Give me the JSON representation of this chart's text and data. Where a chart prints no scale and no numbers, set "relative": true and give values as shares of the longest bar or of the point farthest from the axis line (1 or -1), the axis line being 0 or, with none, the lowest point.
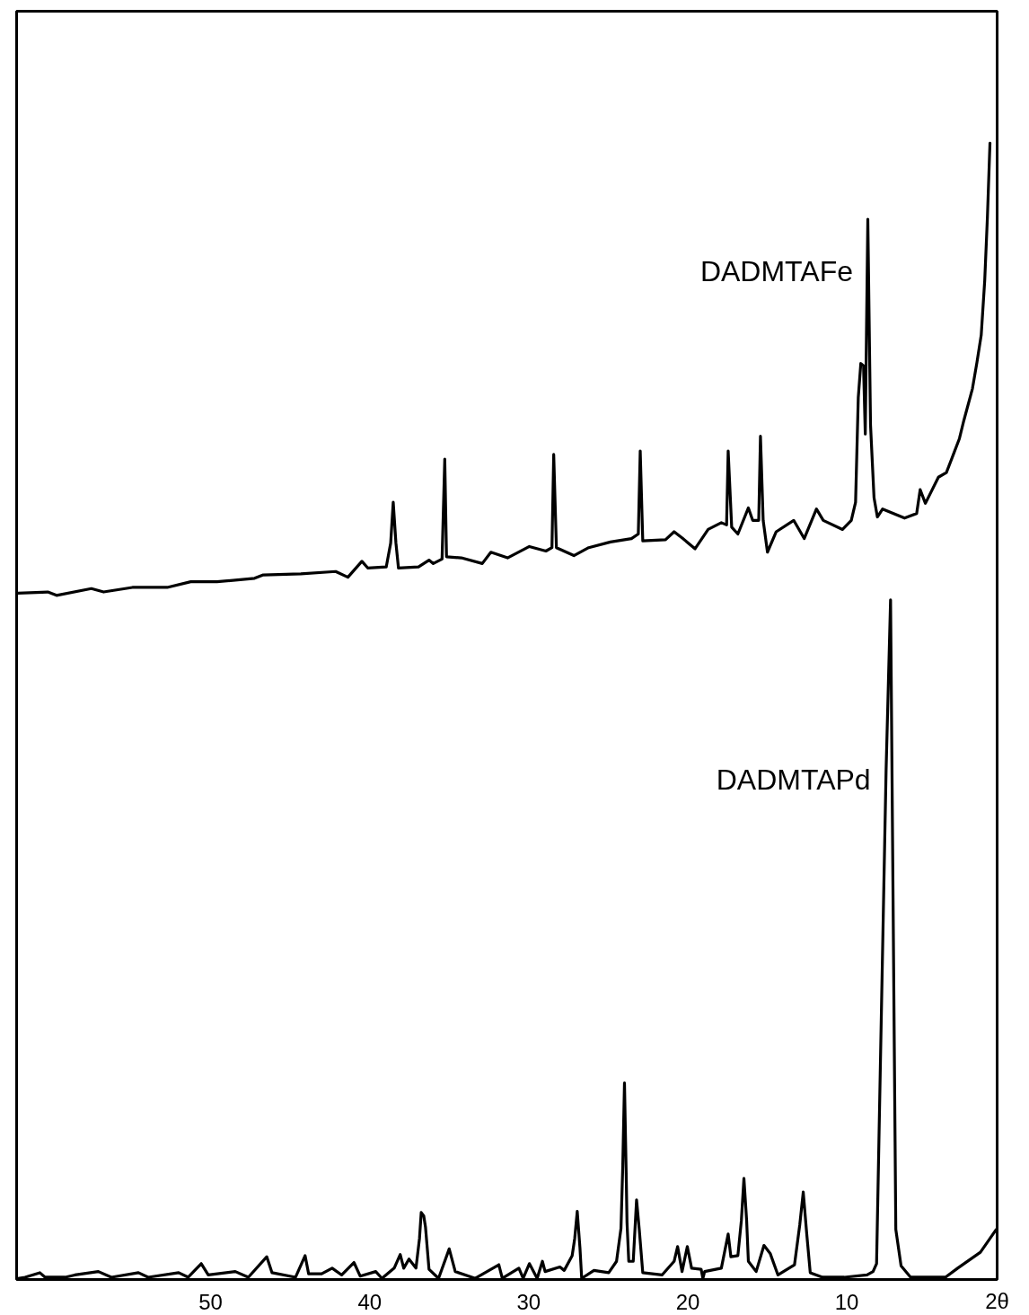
{
  "chart_data": {
    "type": "line",
    "relative": true,
    "xlabel": "2θ",
    "xlim": [
      62.2,
      0.55
    ],
    "xticks": [
      50,
      40,
      30,
      20,
      10
    ],
    "series": [
      {
        "name": "DADMTAFe",
        "color": "#000000",
        "x": [
          62.11,
          60.24,
          59.69,
          57.5,
          56.73,
          54.92,
          52.73,
          51.25,
          49.6,
          47.24,
          46.69,
          44.33,
          42.14,
          41.37,
          40.49,
          40.11,
          38.96,
          38.68,
          38.52,
          38.35,
          38.19,
          36.93,
          36.27,
          36.0,
          35.45,
          35.28,
          35.17,
          34.24,
          32.92,
          32.38,
          31.33,
          29.96,
          28.92,
          28.54,
          28.43,
          28.26,
          27.16,
          26.23,
          24.86,
          23.54,
          23.11,
          22.99,
          22.83,
          21.4,
          20.86,
          20.31,
          19.54,
          18.72,
          17.89,
          17.56,
          17.46,
          17.24,
          16.85,
          16.19,
          15.92,
          15.54,
          15.43,
          15.26,
          14.99,
          14.44,
          13.34,
          12.68,
          11.91,
          11.48,
          10.27,
          9.72,
          9.45,
          9.28,
          9.12,
          8.95,
          8.84,
          8.68,
          8.51,
          8.29,
          8.08,
          7.75,
          6.37,
          5.61,
          5.39,
          5.06,
          4.24,
          3.74,
          3.3,
          2.92,
          2.64,
          2.1,
          1.82,
          1.55,
          1.33,
          1.16,
          1.0
        ],
        "values": [
          0.604,
          0.605,
          0.602,
          0.608,
          0.605,
          0.609,
          0.609,
          0.614,
          0.614,
          0.617,
          0.62,
          0.621,
          0.623,
          0.618,
          0.632,
          0.626,
          0.627,
          0.648,
          0.684,
          0.648,
          0.626,
          0.627,
          0.633,
          0.63,
          0.634,
          0.722,
          0.636,
          0.635,
          0.63,
          0.64,
          0.635,
          0.645,
          0.641,
          0.644,
          0.726,
          0.644,
          0.637,
          0.644,
          0.649,
          0.652,
          0.656,
          0.729,
          0.65,
          0.651,
          0.658,
          0.652,
          0.643,
          0.66,
          0.666,
          0.664,
          0.729,
          0.662,
          0.656,
          0.679,
          0.668,
          0.668,
          0.742,
          0.668,
          0.64,
          0.658,
          0.668,
          0.652,
          0.678,
          0.668,
          0.66,
          0.668,
          0.684,
          0.776,
          0.806,
          0.804,
          0.744,
          0.933,
          0.752,
          0.688,
          0.671,
          0.678,
          0.67,
          0.674,
          0.695,
          0.683,
          0.706,
          0.71,
          0.726,
          0.74,
          0.756,
          0.784,
          0.807,
          0.831,
          0.879,
          0.935,
          1.0
        ]
      },
      {
        "name": "DADMTAPd",
        "color": "#000000",
        "x": [
          62.11,
          61.67,
          60.74,
          60.41,
          59.15,
          58.54,
          57.06,
          56.24,
          54.54,
          53.93,
          52.01,
          51.41,
          50.59,
          50.15,
          48.45,
          47.63,
          46.47,
          46.14,
          44.66,
          44.06,
          43.84,
          43.02,
          42.36,
          41.76,
          40.99,
          40.6,
          39.62,
          39.23,
          38.46,
          38.08,
          37.86,
          37.53,
          37.09,
          36.87,
          36.76,
          36.6,
          36.49,
          36.27,
          35.67,
          35.0,
          34.62,
          33.36,
          31.88,
          31.66,
          30.62,
          30.35,
          29.96,
          29.47,
          29.14,
          28.97,
          28.04,
          27.77,
          27.27,
          27.11,
          26.95,
          26.78,
          26.67,
          25.9,
          24.97,
          24.48,
          24.2,
          24.09,
          23.98,
          23.87,
          23.82,
          23.71,
          23.43,
          23.22,
          23.05,
          22.83,
          21.62,
          20.86,
          20.64,
          20.36,
          20.03,
          19.76,
          19.16,
          19.05,
          18.94,
          17.89,
          17.46,
          17.29,
          16.85,
          16.63,
          16.47,
          16.3,
          16.19,
          15.7,
          15.21,
          14.82,
          14.33,
          13.29,
          12.96,
          12.74,
          12.52,
          12.3,
          11.53,
          10.16,
          8.73,
          8.35,
          8.13,
          7.86,
          7.53,
          7.25,
          7.09,
          6.92,
          6.59,
          5.99,
          3.8,
          3.03,
          1.6,
          0.61
        ],
        "values": [
          0.001,
          0.002,
          0.006,
          0.002,
          0.002,
          0.004,
          0.007,
          0.002,
          0.006,
          0.002,
          0.006,
          0.002,
          0.014,
          0.004,
          0.007,
          0.002,
          0.02,
          0.006,
          0.002,
          0.021,
          0.005,
          0.005,
          0.01,
          0.004,
          0.015,
          0.003,
          0.007,
          0.001,
          0.01,
          0.022,
          0.01,
          0.018,
          0.01,
          0.036,
          0.059,
          0.056,
          0.046,
          0.009,
          0.001,
          0.027,
          0.007,
          0.001,
          0.013,
          0.001,
          0.01,
          0.001,
          0.014,
          0.001,
          0.016,
          0.007,
          0.011,
          0.008,
          0.021,
          0.036,
          0.06,
          0.028,
          0.001,
          0.008,
          0.006,
          0.016,
          0.045,
          0.099,
          0.173,
          0.091,
          0.05,
          0.016,
          0.016,
          0.07,
          0.044,
          0.006,
          0.004,
          0.016,
          0.029,
          0.007,
          0.029,
          0.01,
          0.009,
          0.001,
          0.007,
          0.01,
          0.04,
          0.02,
          0.021,
          0.052,
          0.089,
          0.052,
          0.016,
          0.007,
          0.03,
          0.023,
          0.004,
          0.013,
          0.048,
          0.077,
          0.04,
          0.006,
          0.002,
          0.002,
          0.004,
          0.007,
          0.014,
          0.211,
          0.449,
          0.598,
          0.33,
          0.044,
          0.012,
          0.002,
          0.002,
          0.01,
          0.024,
          0.044
        ]
      }
    ]
  }
}
